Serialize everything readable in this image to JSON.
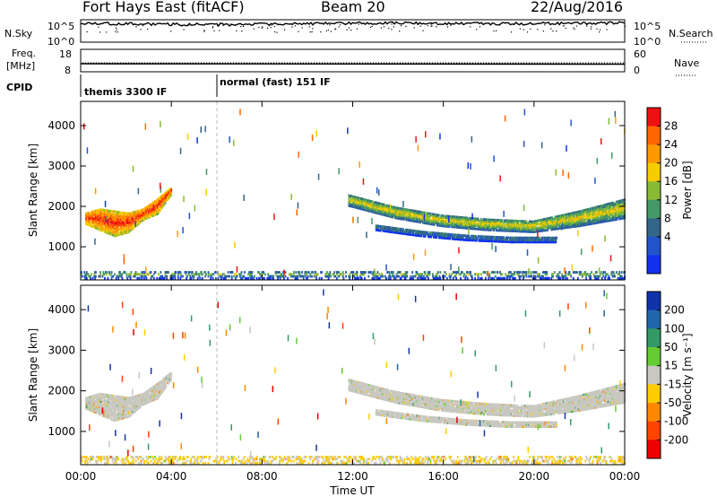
{
  "header": {
    "station": "Fort Hays East (fitACF)",
    "beam": "Beam 20",
    "date": "22/Aug/2016"
  },
  "time_axis": {
    "label": "Time UT",
    "ticks": [
      "00:00",
      "04:00",
      "08:00",
      "12:00",
      "16:00",
      "20:00",
      "00:00"
    ]
  },
  "panels": {
    "nsky": {
      "label": "N.Sky",
      "right_label": "N.Search",
      "left_ticks": [
        "10^5",
        "10^0"
      ],
      "right_ticks": [
        "10^5",
        "10^0"
      ]
    },
    "freq": {
      "label_line1": "Freq.",
      "label_line2": "[MHz]",
      "left_ticks": [
        "18",
        "8"
      ],
      "right_ticks": [
        "60",
        "0"
      ],
      "right_label": "Nave"
    },
    "cpid": {
      "label": "CPID",
      "mode1": "themis 3300 IF",
      "mode2": "normal (fast) 151 IF"
    },
    "power": {
      "ylabel": "Slant Range [km]",
      "colorbar_label": "Power [dB]",
      "colorbar_ticks": [
        "28",
        "24",
        "20",
        "16",
        "12",
        "8",
        "4"
      ]
    },
    "velocity": {
      "ylabel": "Slant Range [km]",
      "colorbar_label": "Velocity [m s⁻¹]",
      "colorbar_ticks": [
        "200",
        "100",
        "50",
        "15",
        "-15",
        "-50",
        "-100",
        "-200"
      ]
    }
  },
  "colors": {
    "power_scale": [
      "#ee1111",
      "#ff6600",
      "#ff9900",
      "#f5cc00",
      "#88bb33",
      "#449966",
      "#336688",
      "#2255cc",
      "#1133ee"
    ],
    "velocity_scale": [
      "#1133aa",
      "#2266aa",
      "#339966",
      "#66cc33",
      "#c8c8c0",
      "#ffcc00",
      "#ff8800",
      "#ff4400",
      "#ee0000"
    ]
  },
  "chart_data": [
    {
      "type": "line",
      "title": "N.Sky / N.Search",
      "x": [
        0,
        2,
        4,
        6,
        8,
        10,
        12,
        14,
        16,
        18,
        20,
        22,
        24
      ],
      "series": [
        {
          "name": "N.Sky",
          "values": [
            100000,
            80000,
            60000,
            50000,
            60000,
            80000,
            100000,
            120000,
            90000,
            80000,
            90000,
            100000,
            120000
          ]
        }
      ],
      "ylim": [
        1,
        100000
      ],
      "xlim": [
        0,
        24
      ]
    },
    {
      "type": "line",
      "title": "Freq. / Nave",
      "x": [
        0,
        4,
        8,
        12,
        16,
        20,
        24
      ],
      "series": [
        {
          "name": "Freq.",
          "values": [
            12,
            12,
            11.8,
            11.8,
            11.8,
            11.8,
            11.8
          ]
        },
        {
          "name": "Nave",
          "values": [
            27,
            27,
            26,
            26,
            26,
            26,
            26
          ]
        }
      ],
      "xlim": [
        0,
        24
      ]
    },
    {
      "type": "heatmap",
      "title": "Power [dB]",
      "xlabel": "Time UT",
      "ylabel": "Slant Range [km]",
      "xlim": [
        0,
        24
      ],
      "ylim": [
        180,
        4600
      ],
      "clim": [
        0,
        30
      ],
      "yticks": [
        1000,
        2000,
        3000,
        4000
      ],
      "regions": [
        {
          "t": [
            0.2,
            4.0
          ],
          "r_bottom": [
            1550,
            1400,
            1250,
            1350,
            1650,
            1800,
            2300
          ],
          "r_top": [
            1850,
            1950,
            1900,
            1850,
            1950,
            2200,
            2500
          ],
          "value": 22
        },
        {
          "t": [
            11.8,
            24.0
          ],
          "r_bottom": [
            2000,
            1700,
            1500,
            1400,
            1350,
            1500,
            1700
          ],
          "r_top": [
            2300,
            2000,
            1800,
            1700,
            1650,
            1900,
            2200
          ],
          "value": 13
        },
        {
          "t": [
            13.0,
            21.0
          ],
          "r_bottom": [
            1400,
            1250,
            1150,
            1100,
            1100
          ],
          "r_top": [
            1550,
            1400,
            1300,
            1250,
            1250
          ],
          "value": 6
        },
        {
          "t": [
            0.0,
            24.0
          ],
          "r_bottom": [
            200
          ],
          "r_top": [
            400
          ],
          "value": 8
        }
      ]
    },
    {
      "type": "heatmap",
      "title": "Velocity [m s⁻¹]",
      "xlabel": "Time UT",
      "ylabel": "Slant Range [km]",
      "xlim": [
        0,
        24
      ],
      "ylim": [
        180,
        4600
      ],
      "clim": [
        -250,
        250
      ],
      "yticks": [
        1000,
        2000,
        3000,
        4000
      ],
      "regions": [
        {
          "t": [
            0.2,
            4.0
          ],
          "r_bottom": [
            1550,
            1400,
            1250,
            1350,
            1650,
            1800,
            2300
          ],
          "r_top": [
            1850,
            1950,
            1900,
            1850,
            1950,
            2200,
            2500
          ],
          "value": 0
        },
        {
          "t": [
            11.8,
            24.0
          ],
          "r_bottom": [
            2000,
            1700,
            1500,
            1400,
            1350,
            1500,
            1700
          ],
          "r_top": [
            2300,
            2000,
            1800,
            1700,
            1650,
            1900,
            2200
          ],
          "value": 0
        },
        {
          "t": [
            13.0,
            21.0
          ],
          "r_bottom": [
            1400,
            1250,
            1150,
            1100,
            1100
          ],
          "r_top": [
            1550,
            1400,
            1300,
            1250,
            1250
          ],
          "value": 0
        },
        {
          "t": [
            0.0,
            24.0
          ],
          "r_bottom": [
            200
          ],
          "r_top": [
            400
          ],
          "value": -30
        }
      ]
    }
  ]
}
